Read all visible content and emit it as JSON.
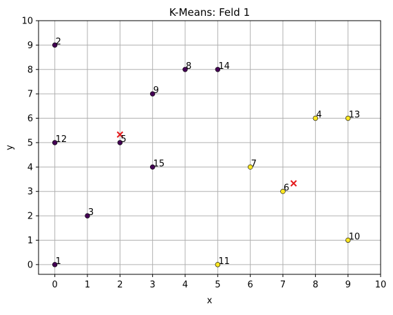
{
  "chart_data": {
    "type": "scatter",
    "title": "K-Means: Feld 1",
    "xlabel": "x",
    "ylabel": "y",
    "xlim": [
      -0.5,
      10
    ],
    "ylim": [
      -0.4,
      10
    ],
    "xticks": [
      0,
      1,
      2,
      3,
      4,
      5,
      6,
      7,
      8,
      9,
      10
    ],
    "yticks": [
      0,
      1,
      2,
      3,
      4,
      5,
      6,
      7,
      8,
      9,
      10
    ],
    "grid": true,
    "points": [
      {
        "label": "1",
        "x": 0,
        "y": 0,
        "cluster": 0
      },
      {
        "label": "2",
        "x": 0,
        "y": 9,
        "cluster": 0
      },
      {
        "label": "3",
        "x": 1,
        "y": 2,
        "cluster": 0
      },
      {
        "label": "4",
        "x": 8,
        "y": 6,
        "cluster": 1
      },
      {
        "label": "5",
        "x": 2,
        "y": 5,
        "cluster": 0
      },
      {
        "label": "6",
        "x": 7,
        "y": 3,
        "cluster": 1
      },
      {
        "label": "7",
        "x": 6,
        "y": 4,
        "cluster": 1
      },
      {
        "label": "8",
        "x": 4,
        "y": 8,
        "cluster": 0
      },
      {
        "label": "9",
        "x": 3,
        "y": 7,
        "cluster": 0
      },
      {
        "label": "10",
        "x": 9,
        "y": 1,
        "cluster": 1
      },
      {
        "label": "11",
        "x": 5,
        "y": 0,
        "cluster": 1
      },
      {
        "label": "12",
        "x": 0,
        "y": 5,
        "cluster": 0
      },
      {
        "label": "13",
        "x": 9,
        "y": 6,
        "cluster": 1
      },
      {
        "label": "14",
        "x": 5,
        "y": 8,
        "cluster": 0
      },
      {
        "label": "15",
        "x": 3,
        "y": 4,
        "cluster": 0
      }
    ],
    "centroids": [
      {
        "x": 2.0,
        "y": 5.33
      },
      {
        "x": 7.33,
        "y": 3.33
      }
    ],
    "cluster_colors": [
      "#440154",
      "#fde725"
    ],
    "centroid_color": "#e41a1c"
  }
}
